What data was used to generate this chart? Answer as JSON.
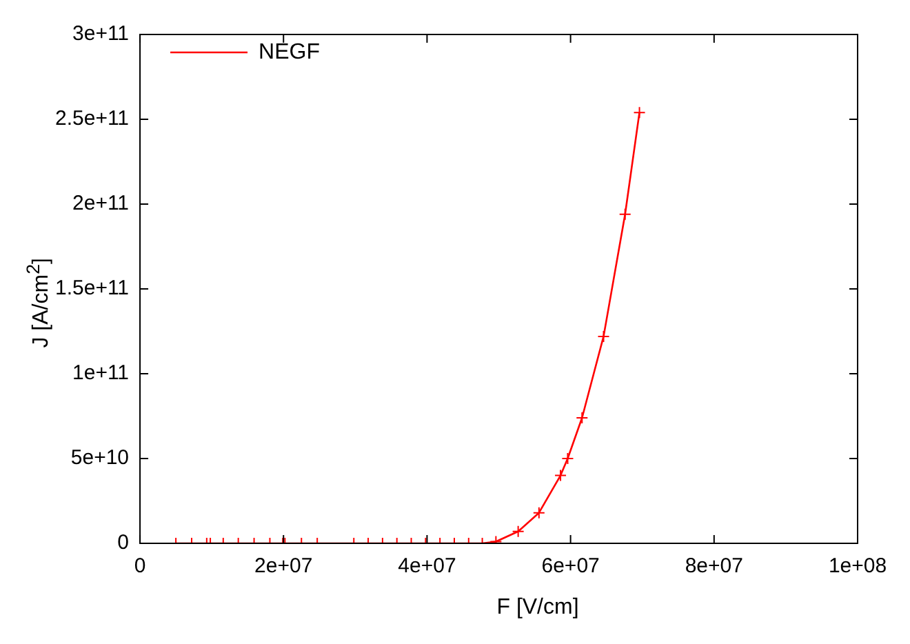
{
  "chart_data": {
    "type": "line",
    "xlabel": "F [V/cm]",
    "ylabel": "J [A/cm$^{2}$]",
    "series": [
      {
        "name": "NEGF",
        "color": "#ff0000",
        "x": [
          5000000,
          7200000,
          9300000,
          9800000,
          11600000,
          13700000,
          15900000,
          18100000,
          19900000,
          20200000,
          22500000,
          24700000,
          29800000,
          31800000,
          33800000,
          35800000,
          37800000,
          39800000,
          41800000,
          43800000,
          45800000,
          47700000,
          49600000,
          52700000,
          55600000,
          58600000,
          59600000,
          61600000,
          64600000,
          67600000,
          69600000
        ],
        "values": [
          0,
          0,
          0,
          0,
          0,
          0,
          0,
          0,
          0,
          0,
          0,
          0,
          0,
          0,
          0,
          0,
          0,
          0,
          0,
          0,
          0,
          0,
          1000000000,
          7000000000,
          18000000000,
          40000000000,
          50000000000,
          74000000000,
          122000000000,
          194000000000,
          254000000000
        ]
      }
    ],
    "xlim": [
      0,
      100000000
    ],
    "xticks": [
      {
        "value": 0,
        "label": "0"
      },
      {
        "value": 20000000,
        "label": "2e+07"
      },
      {
        "value": 40000000,
        "label": "4e+07"
      },
      {
        "value": 60000000,
        "label": "6e+07"
      },
      {
        "value": 80000000,
        "label": "8e+07"
      },
      {
        "value": 100000000,
        "label": "1e+08"
      }
    ],
    "ylim": [
      0,
      300000000000
    ],
    "yticks": [
      {
        "value": 0,
        "label": "0"
      },
      {
        "value": 50000000000,
        "label": "5e+10"
      },
      {
        "value": 100000000000,
        "label": "1e+11"
      },
      {
        "value": 150000000000,
        "label": "1.5e+11"
      },
      {
        "value": 200000000000,
        "label": "2e+11"
      },
      {
        "value": 250000000000,
        "label": "2.5e+11"
      },
      {
        "value": 300000000000,
        "label": "3e+11"
      }
    ],
    "grid": false,
    "legend": "top left",
    "marker": "cross",
    "line_style": "solid"
  }
}
